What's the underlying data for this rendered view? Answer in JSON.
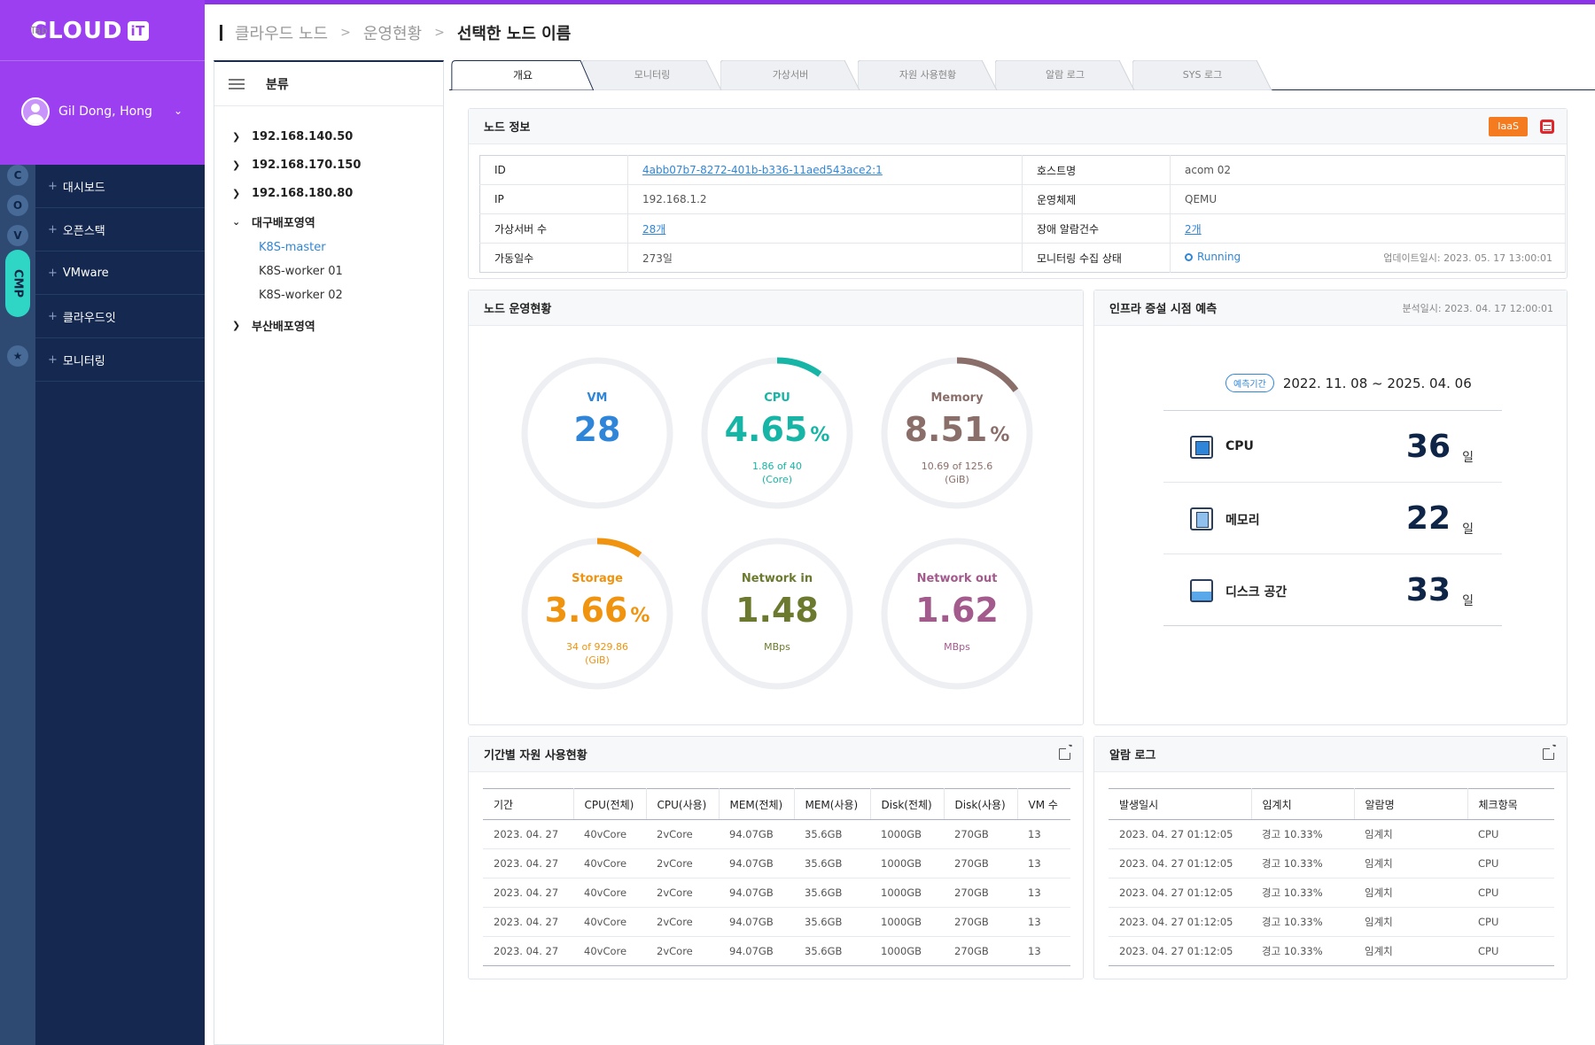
{
  "brand": {
    "tab": "Tab",
    "cloud": "CLOUD",
    "it": "iT"
  },
  "user": {
    "name": "Gil Dong, Hong"
  },
  "rail": {
    "items": [
      "C",
      "O",
      "V"
    ],
    "cmp": "CMP"
  },
  "menu": {
    "items": [
      "대시보드",
      "오픈스택",
      "VMware",
      "클라우드잇",
      "모니터링"
    ]
  },
  "breadcrumb": [
    "클라우드 노드",
    "운영현황",
    "선택한 노드 이름"
  ],
  "tree": {
    "title": "분류",
    "nodes": [
      "192.168.140.50",
      "192.168.170.150",
      "192.168.180.80"
    ],
    "group_open": "대구배포영역",
    "children": [
      "K8S-master",
      "K8S-worker 01",
      "K8S-worker 02"
    ],
    "group_closed": "부산배포영역"
  },
  "tabs": [
    "개요",
    "모니터링",
    "가상서버",
    "자원 사용현황",
    "알람 로그",
    "SYS 로그"
  ],
  "node_info": {
    "title": "노드 정보",
    "badge": "IaaS",
    "rows": [
      {
        "l1": "ID",
        "v1": "4abb07b7-8272-401b-b336-11aed543ace2:1",
        "l2": "호스트명",
        "v2": "acom 02"
      },
      {
        "l1": "IP",
        "v1": "192.168.1.2",
        "l2": "운영체제",
        "v2": "QEMU"
      },
      {
        "l1": "가상서버 수",
        "v1": "28개",
        "l2": "장애 알람건수",
        "v2": "2개"
      },
      {
        "l1": "가동일수",
        "v1": "273일",
        "l2": "모니터링 수집 상태",
        "v2": "Running"
      }
    ],
    "updated": "업데이트일시: 2023. 05. 17  13:00:01"
  },
  "status": {
    "title": "노드 운영현황",
    "gauges": [
      {
        "title": "VM",
        "value": "28",
        "unit": "",
        "sub1": "",
        "sub2": "",
        "fraction": 0,
        "color": "#2f86d8"
      },
      {
        "title": "CPU",
        "value": "4.65",
        "unit": "%",
        "sub1": "1.86 of 40",
        "sub2": "(Core)",
        "fraction": 0.1,
        "color": "#17b5a6"
      },
      {
        "title": "Memory",
        "value": "8.51",
        "unit": "%",
        "sub1": "10.69 of 125.6",
        "sub2": "(GiB)",
        "fraction": 0.15,
        "color": "#8a6e69"
      },
      {
        "title": "Storage",
        "value": "3.66",
        "unit": "%",
        "sub1": "34 of 929.86",
        "sub2": "(GiB)",
        "fraction": 0.1,
        "color": "#f0930f"
      },
      {
        "title": "Network in",
        "value": "1.48",
        "unit": "",
        "sub1": "MBps",
        "sub2": "",
        "fraction": 0,
        "color": "#6b7a2e"
      },
      {
        "title": "Network out",
        "value": "1.62",
        "unit": "",
        "sub1": "MBps",
        "sub2": "",
        "fraction": 0,
        "color": "#a35a8c"
      }
    ]
  },
  "forecast": {
    "title": "인프라 증설 시점 예측",
    "meta": "분석일시: 2023. 04. 17  12:00:01",
    "period_label": "예측기간",
    "period": "2022. 11. 08 ~ 2025. 04. 06",
    "rows": [
      {
        "label": "CPU",
        "value": "36",
        "unit": "일"
      },
      {
        "label": "메모리",
        "value": "22",
        "unit": "일"
      },
      {
        "label": "디스크 공간",
        "value": "33",
        "unit": "일"
      }
    ]
  },
  "usage": {
    "title": "기간별 자원 사용현황",
    "headers": [
      "기간",
      "CPU(전체)",
      "CPU(사용)",
      "MEM(전체)",
      "MEM(사용)",
      "Disk(전체)",
      "Disk(사용)",
      "VM 수"
    ],
    "rows": [
      [
        "2023. 04. 27",
        "40vCore",
        "2vCore",
        "94.07GB",
        "35.6GB",
        "1000GB",
        "270GB",
        "13"
      ],
      [
        "2023. 04. 27",
        "40vCore",
        "2vCore",
        "94.07GB",
        "35.6GB",
        "1000GB",
        "270GB",
        "13"
      ],
      [
        "2023. 04. 27",
        "40vCore",
        "2vCore",
        "94.07GB",
        "35.6GB",
        "1000GB",
        "270GB",
        "13"
      ],
      [
        "2023. 04. 27",
        "40vCore",
        "2vCore",
        "94.07GB",
        "35.6GB",
        "1000GB",
        "270GB",
        "13"
      ],
      [
        "2023. 04. 27",
        "40vCore",
        "2vCore",
        "94.07GB",
        "35.6GB",
        "1000GB",
        "270GB",
        "13"
      ]
    ]
  },
  "alarm": {
    "title": "알람 로그",
    "headers": [
      "발생일시",
      "임계치",
      "알람명",
      "체크항목"
    ],
    "rows": [
      [
        "2023. 04. 27  01:12:05",
        "경고 10.33%",
        "임계치",
        "CPU"
      ],
      [
        "2023. 04. 27  01:12:05",
        "경고 10.33%",
        "임계치",
        "CPU"
      ],
      [
        "2023. 04. 27  01:12:05",
        "경고 10.33%",
        "임계치",
        "CPU"
      ],
      [
        "2023. 04. 27  01:12:05",
        "경고 10.33%",
        "임계치",
        "CPU"
      ],
      [
        "2023. 04. 27  01:12:05",
        "경고 10.33%",
        "임계치",
        "CPU"
      ]
    ]
  }
}
